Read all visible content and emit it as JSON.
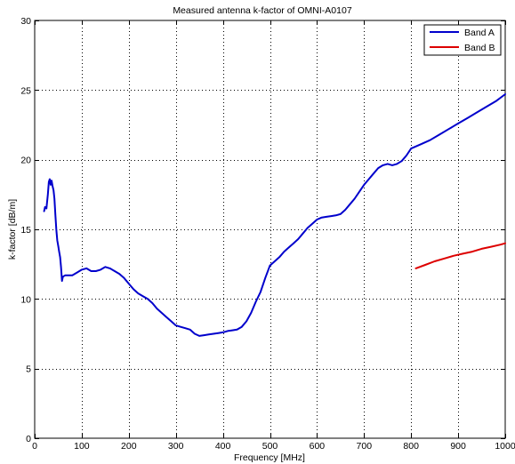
{
  "chart_data": {
    "type": "line",
    "title": "Measured antenna k-factor of OMNI-A0107",
    "xlabel": "Frequency [MHz]",
    "ylabel": "k-factor [dB/m]",
    "xlim": [
      0,
      1000
    ],
    "ylim": [
      0,
      30
    ],
    "x_ticks": [
      0,
      100,
      200,
      300,
      400,
      500,
      600,
      700,
      800,
      900,
      1000
    ],
    "y_ticks": [
      0,
      5,
      10,
      15,
      20,
      25,
      30
    ],
    "grid": true,
    "legend_position": "top-right",
    "series": [
      {
        "name": "Band A",
        "color": "#0000cc",
        "x": [
          20,
          22,
          25,
          28,
          30,
          32,
          34,
          36,
          38,
          40,
          42,
          44,
          46,
          48,
          50,
          52,
          54,
          56,
          58,
          60,
          65,
          70,
          80,
          90,
          100,
          110,
          120,
          130,
          140,
          150,
          160,
          170,
          180,
          190,
          200,
          210,
          220,
          230,
          240,
          250,
          260,
          270,
          280,
          290,
          300,
          310,
          320,
          330,
          340,
          350,
          360,
          370,
          380,
          390,
          400,
          410,
          420,
          430,
          440,
          450,
          460,
          470,
          480,
          490,
          500,
          510,
          520,
          530,
          540,
          550,
          560,
          570,
          580,
          590,
          600,
          610,
          620,
          630,
          640,
          650,
          660,
          670,
          680,
          690,
          700,
          710,
          720,
          730,
          740,
          750,
          760,
          770,
          780,
          790,
          800,
          820,
          840,
          860,
          880,
          900,
          920,
          940,
          960,
          980,
          1000
        ],
        "y": [
          16.3,
          16.6,
          16.5,
          17.5,
          18.4,
          18.6,
          18.2,
          18.5,
          18.1,
          17.8,
          17.2,
          16.0,
          15.0,
          14.2,
          13.8,
          13.4,
          13.0,
          12.3,
          11.3,
          11.6,
          11.7,
          11.7,
          11.7,
          11.9,
          12.1,
          12.2,
          12.0,
          12.0,
          12.1,
          12.3,
          12.2,
          12.0,
          11.8,
          11.5,
          11.1,
          10.7,
          10.4,
          10.2,
          10.0,
          9.7,
          9.3,
          9.0,
          8.7,
          8.4,
          8.1,
          8.0,
          7.9,
          7.8,
          7.5,
          7.35,
          7.4,
          7.45,
          7.5,
          7.55,
          7.6,
          7.7,
          7.75,
          7.8,
          8.0,
          8.4,
          9.0,
          9.8,
          10.5,
          11.5,
          12.4,
          12.7,
          13.0,
          13.4,
          13.7,
          14.0,
          14.3,
          14.7,
          15.1,
          15.4,
          15.7,
          15.85,
          15.9,
          15.95,
          16.0,
          16.1,
          16.4,
          16.8,
          17.2,
          17.7,
          18.2,
          18.6,
          19.0,
          19.4,
          19.6,
          19.7,
          19.6,
          19.7,
          19.9,
          20.3,
          20.8,
          21.1,
          21.4,
          21.8,
          22.2,
          22.6,
          23.0,
          23.4,
          23.8,
          24.2,
          24.7
        ]
      },
      {
        "name": "Band B",
        "color": "#dd0000",
        "x": [
          810,
          830,
          850,
          870,
          890,
          910,
          930,
          950,
          970,
          990,
          1000
        ],
        "y": [
          12.2,
          12.45,
          12.7,
          12.9,
          13.1,
          13.25,
          13.4,
          13.6,
          13.75,
          13.9,
          14.0
        ]
      }
    ]
  }
}
